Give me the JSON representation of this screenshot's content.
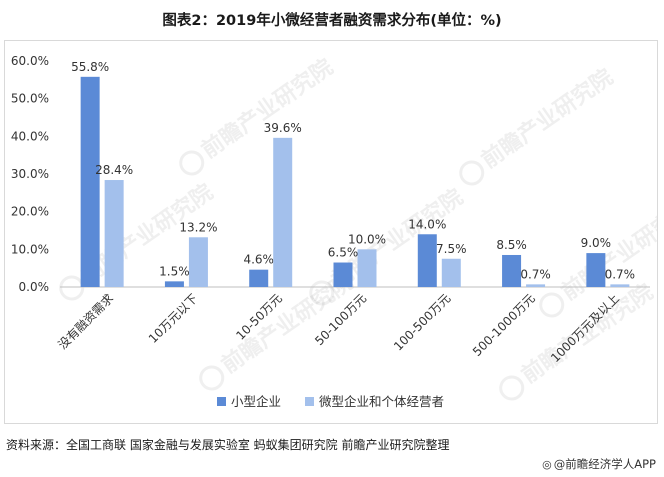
{
  "title": "图表2：2019年小微经营者融资需求分布(单位：%)",
  "source": "资料来源：全国工商联 国家金融与发展实验室 蚂蚁集团研究院 前瞻产业研究院整理",
  "brand": {
    "icon": "at-sign-icon",
    "text": "@前瞻经济学人APP"
  },
  "watermark": {
    "text": "前瞻产业研究院",
    "icon": "prospective-logo-icon"
  },
  "chart_data": {
    "type": "bar",
    "title": "图表2：2019年小微经营者融资需求分布(单位：%)",
    "xlabel": "",
    "ylabel": "",
    "categories": [
      "没有融资需求",
      "10万元以下",
      "10-50万元",
      "50-100万元",
      "100-500万元",
      "500-1000万元",
      "1000万元及以上"
    ],
    "series": [
      {
        "name": "小型企业",
        "color": "#5b8ad6",
        "values": [
          55.8,
          1.5,
          4.6,
          6.5,
          14.0,
          8.5,
          9.0
        ],
        "labels": [
          "55.8%",
          "1.5%",
          "4.6%",
          "6.5%",
          "14.0%",
          "8.5%",
          "9.0%"
        ]
      },
      {
        "name": "微型企业和个体经营者",
        "color": "#a3c0ec",
        "values": [
          28.4,
          13.2,
          39.6,
          10.0,
          7.5,
          0.7,
          0.7
        ],
        "labels": [
          "28.4%",
          "13.2%",
          "39.6%",
          "10.0%",
          "7.5%",
          "0.7%",
          "0.7%"
        ]
      }
    ],
    "ylim": [
      0,
      60
    ],
    "yticks": [
      0,
      10,
      20,
      30,
      40,
      50,
      60
    ],
    "ytick_labels": [
      "0.0%",
      "10.0%",
      "20.0%",
      "30.0%",
      "40.0%",
      "50.0%",
      "60.0%"
    ],
    "grid": false,
    "legend": "bottom-center"
  }
}
